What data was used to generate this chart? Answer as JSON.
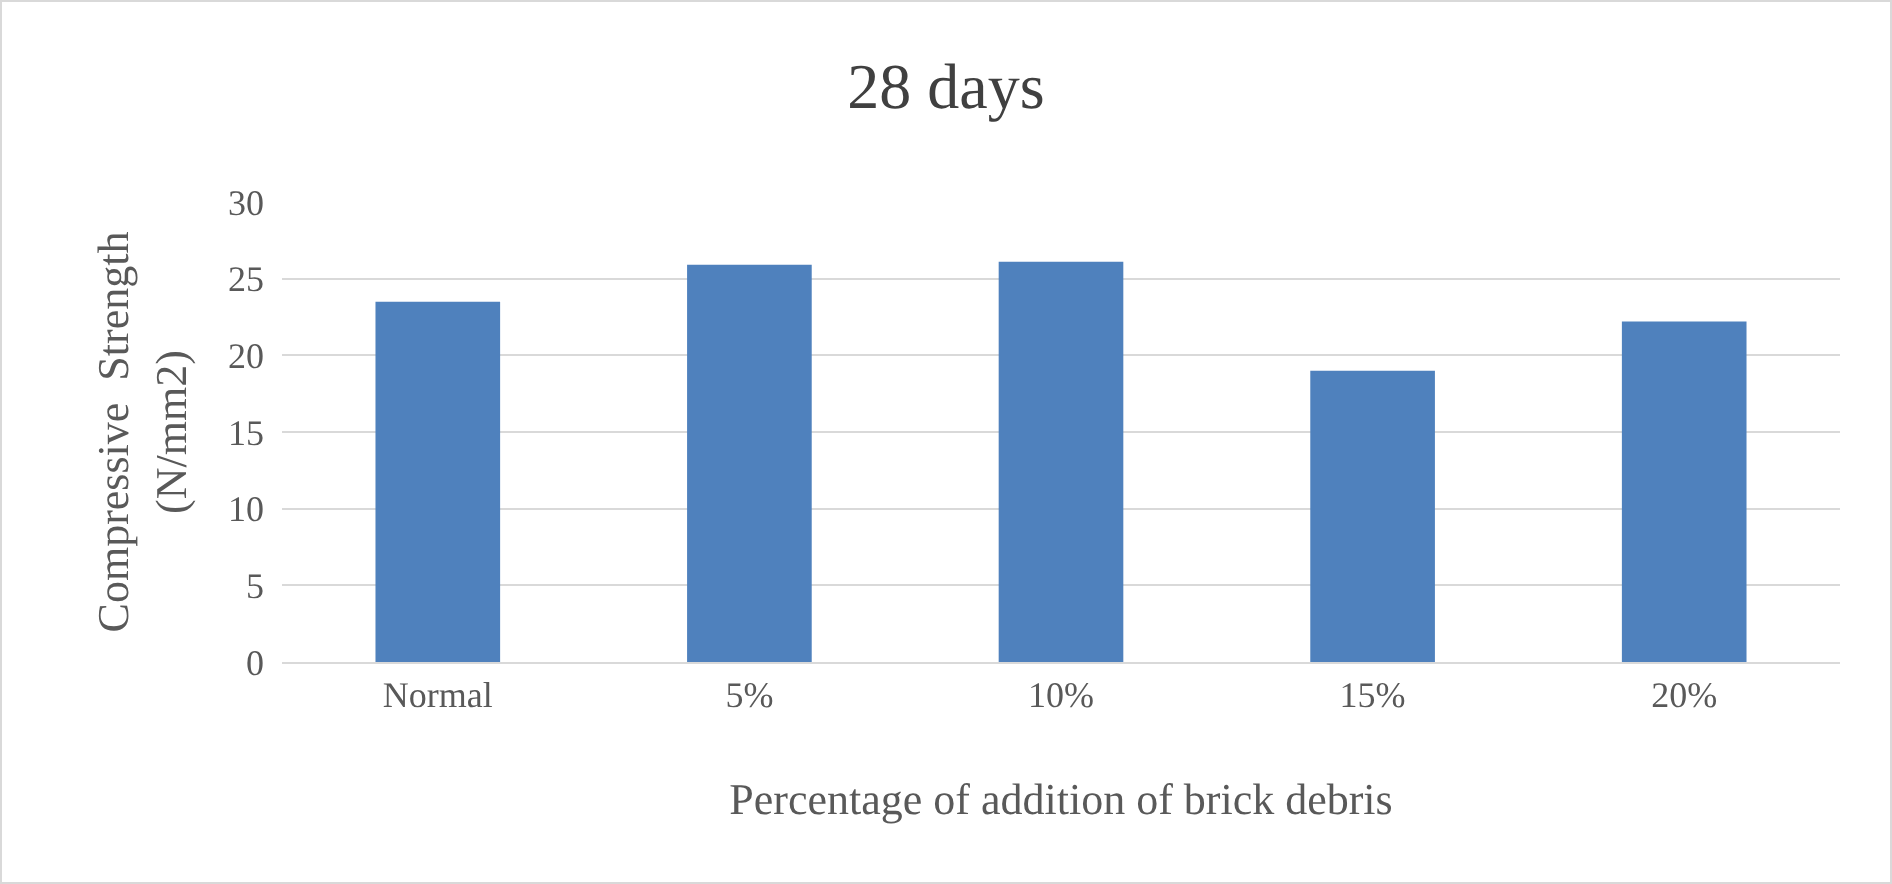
{
  "chart_data": {
    "type": "bar",
    "title": "28 days",
    "xlabel": "Percentage of addition of brick debris",
    "ylabel": "Compressive  Strength\n(N/mm2)",
    "categories": [
      "Normal",
      "5%",
      "10%",
      "15%",
      "20%"
    ],
    "values": [
      23.5,
      25.9,
      26.1,
      19.0,
      22.2
    ],
    "color": "#4f81bd",
    "ylim": [
      0,
      30
    ],
    "yticks": [
      0,
      5,
      10,
      15,
      20,
      25,
      30
    ],
    "grid": "y"
  }
}
